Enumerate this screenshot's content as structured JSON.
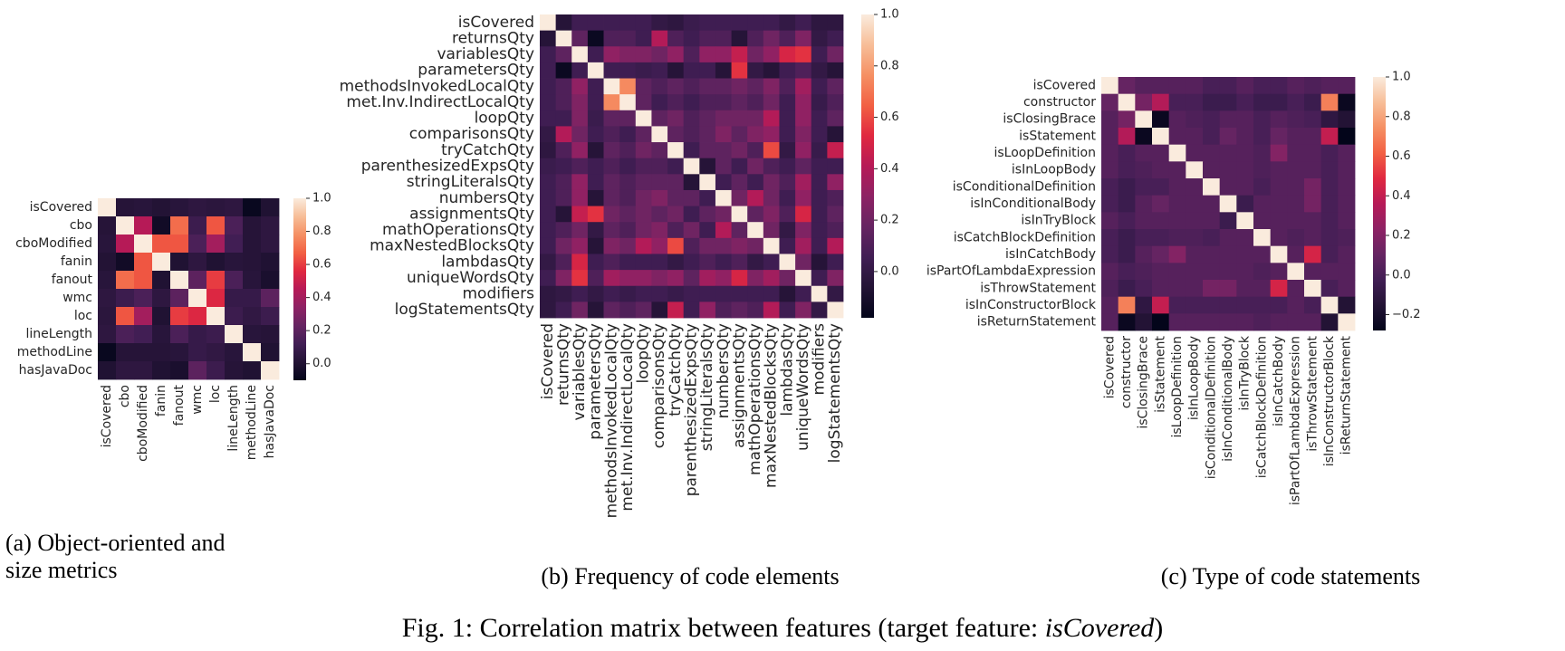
{
  "figure": {
    "caption_prefix": "Fig. 1: Correlation matrix between features (target feature: ",
    "caption_em": "isCovered",
    "caption_suffix": ")"
  },
  "chart_data": [
    {
      "type": "heatmap",
      "subcaption_lines": [
        "(a) Object-oriented and",
        "size metrics"
      ],
      "features": [
        "isCovered",
        "cbo",
        "cboModified",
        "fanin",
        "fanout",
        "wmc",
        "loc",
        "lineLength",
        "methodLine",
        "hasJavaDoc"
      ],
      "colorbar": {
        "min": -0.1,
        "max": 1.0,
        "ticks": [
          "0.0",
          "0.2",
          "0.4",
          "0.6",
          "0.8",
          "1.0"
        ],
        "tick_values": [
          0,
          0.2,
          0.4,
          0.6,
          0.8,
          1.0
        ]
      },
      "values": [
        [
          1.0,
          0.02,
          0.03,
          0.01,
          0.03,
          0.05,
          0.04,
          0.05,
          -0.08,
          0.0
        ],
        [
          0.02,
          1.0,
          0.45,
          -0.05,
          0.7,
          0.1,
          0.65,
          0.15,
          0.02,
          0.05
        ],
        [
          0.03,
          0.45,
          1.0,
          0.65,
          0.65,
          0.15,
          0.4,
          0.12,
          0.02,
          0.05
        ],
        [
          0.01,
          -0.05,
          0.65,
          1.0,
          0.0,
          0.05,
          0.0,
          0.03,
          0.02,
          0.0
        ],
        [
          0.03,
          0.7,
          0.65,
          0.0,
          1.0,
          0.2,
          0.6,
          0.15,
          0.03,
          -0.02
        ],
        [
          0.05,
          0.1,
          0.15,
          0.05,
          0.2,
          1.0,
          0.55,
          0.08,
          0.08,
          0.2
        ],
        [
          0.04,
          0.65,
          0.4,
          0.0,
          0.6,
          0.55,
          1.0,
          0.1,
          0.06,
          0.1
        ],
        [
          0.05,
          0.15,
          0.12,
          0.03,
          0.15,
          0.08,
          0.1,
          1.0,
          0.03,
          0.02
        ],
        [
          -0.08,
          0.02,
          0.02,
          0.02,
          0.03,
          0.08,
          0.06,
          0.03,
          1.0,
          0.0
        ],
        [
          0.0,
          0.05,
          0.05,
          0.0,
          -0.02,
          0.2,
          0.1,
          0.02,
          0.0,
          1.0
        ]
      ]
    },
    {
      "type": "heatmap",
      "subcaption_lines": [
        "(b) Frequency of code elements"
      ],
      "features": [
        "isCovered",
        "returnsQty",
        "variablesQty",
        "parametersQty",
        "methodsInvokedLocalQty",
        "met.Inv.IndirectLocalQty",
        "loopQty",
        "comparisonsQty",
        "tryCatchQty",
        "parenthesizedExpsQty",
        "stringLiteralsQty",
        "numbersQty",
        "assignmentsQty",
        "mathOperationsQty",
        "maxNestedBlocksQty",
        "lambdasQty",
        "uniqueWordsQty",
        "modifiers",
        "logStatementsQty"
      ],
      "colorbar": {
        "min": -0.18,
        "max": 1.0,
        "ticks": [
          "0.0",
          "0.2",
          "0.4",
          "0.6",
          "0.8",
          "1.0"
        ],
        "tick_values": [
          0,
          0.2,
          0.4,
          0.6,
          0.8,
          1.0
        ]
      },
      "values": [
        [
          1.0,
          -0.05,
          0.05,
          0.05,
          0.05,
          0.05,
          0.05,
          0.0,
          -0.02,
          0.03,
          0.05,
          0.05,
          0.05,
          0.05,
          0.05,
          0.0,
          0.05,
          -0.02,
          -0.02
        ],
        [
          -0.05,
          1.0,
          0.15,
          -0.15,
          0.1,
          0.1,
          0.05,
          0.4,
          0.1,
          0.05,
          0.1,
          0.1,
          -0.05,
          0.1,
          0.2,
          0.1,
          0.25,
          0.0,
          0.05
        ],
        [
          0.05,
          0.15,
          1.0,
          0.05,
          0.3,
          0.25,
          0.25,
          0.2,
          0.3,
          0.1,
          0.3,
          0.3,
          0.45,
          0.2,
          0.3,
          0.5,
          0.55,
          0.05,
          0.2
        ],
        [
          0.05,
          -0.15,
          0.05,
          1.0,
          0.05,
          0.05,
          0.03,
          0.05,
          -0.05,
          0.05,
          0.05,
          -0.05,
          0.55,
          0.0,
          -0.05,
          0.05,
          0.1,
          0.0,
          -0.05
        ],
        [
          0.05,
          0.1,
          0.3,
          0.05,
          1.0,
          0.75,
          0.15,
          0.1,
          0.15,
          0.1,
          0.15,
          0.15,
          0.2,
          0.15,
          0.25,
          0.1,
          0.35,
          0.05,
          0.15
        ],
        [
          0.05,
          0.1,
          0.25,
          0.05,
          0.75,
          1.0,
          0.15,
          0.05,
          0.1,
          0.05,
          0.1,
          0.1,
          0.15,
          0.1,
          0.2,
          0.05,
          0.3,
          0.02,
          0.1
        ],
        [
          0.05,
          0.05,
          0.25,
          0.03,
          0.15,
          0.15,
          1.0,
          0.15,
          0.2,
          0.1,
          0.15,
          0.2,
          0.2,
          0.2,
          0.4,
          0.05,
          0.3,
          0.05,
          0.15
        ],
        [
          0.0,
          0.4,
          0.2,
          0.05,
          0.1,
          0.05,
          0.15,
          1.0,
          0.15,
          0.1,
          0.15,
          0.25,
          0.15,
          0.25,
          0.3,
          0.05,
          0.25,
          0.05,
          -0.05
        ],
        [
          -0.02,
          0.1,
          0.3,
          -0.05,
          0.15,
          0.1,
          0.2,
          0.15,
          1.0,
          0.05,
          0.15,
          0.15,
          0.2,
          0.1,
          0.6,
          0.0,
          0.3,
          0.02,
          0.45
        ],
        [
          0.03,
          0.05,
          0.1,
          0.05,
          0.1,
          0.05,
          0.1,
          0.1,
          0.05,
          1.0,
          -0.05,
          0.15,
          0.05,
          0.2,
          0.1,
          0.05,
          0.15,
          0.05,
          0.05
        ],
        [
          0.05,
          0.1,
          0.3,
          0.05,
          0.15,
          0.1,
          0.15,
          0.15,
          0.15,
          -0.05,
          1.0,
          0.05,
          0.15,
          0.05,
          0.2,
          0.1,
          0.35,
          0.05,
          0.3
        ],
        [
          0.05,
          0.1,
          0.3,
          -0.05,
          0.15,
          0.1,
          0.2,
          0.25,
          0.15,
          0.15,
          0.05,
          1.0,
          0.2,
          0.4,
          0.2,
          0.05,
          0.3,
          0.05,
          0.1
        ],
        [
          0.05,
          -0.05,
          0.45,
          0.55,
          0.2,
          0.15,
          0.2,
          0.15,
          0.2,
          0.05,
          0.15,
          0.2,
          1.0,
          0.15,
          0.25,
          0.1,
          0.5,
          0.05,
          0.15
        ],
        [
          0.05,
          0.1,
          0.2,
          0.0,
          0.15,
          0.1,
          0.2,
          0.25,
          0.1,
          0.2,
          0.05,
          0.4,
          0.15,
          1.0,
          0.2,
          0.0,
          0.25,
          0.05,
          0.1
        ],
        [
          0.05,
          0.2,
          0.3,
          -0.05,
          0.25,
          0.2,
          0.4,
          0.3,
          0.6,
          0.1,
          0.2,
          0.2,
          0.25,
          0.2,
          1.0,
          0.05,
          0.35,
          0.05,
          0.4
        ],
        [
          0.0,
          0.1,
          0.5,
          0.05,
          0.1,
          0.05,
          0.05,
          0.05,
          0.0,
          0.05,
          0.1,
          0.05,
          0.1,
          0.0,
          0.05,
          1.0,
          0.2,
          -0.05,
          0.05
        ],
        [
          0.05,
          0.25,
          0.55,
          0.1,
          0.35,
          0.3,
          0.3,
          0.25,
          0.3,
          0.15,
          0.35,
          0.3,
          0.5,
          0.25,
          0.35,
          0.2,
          1.0,
          0.05,
          0.25
        ],
        [
          -0.02,
          0.0,
          0.05,
          0.0,
          0.05,
          0.02,
          0.05,
          0.05,
          0.02,
          0.05,
          0.05,
          0.05,
          0.05,
          0.05,
          0.05,
          -0.05,
          0.05,
          1.0,
          0.0
        ],
        [
          -0.02,
          0.05,
          0.2,
          -0.05,
          0.15,
          0.1,
          0.15,
          -0.05,
          0.45,
          0.05,
          0.3,
          0.1,
          0.15,
          0.1,
          0.4,
          0.05,
          0.25,
          0.0,
          1.0
        ]
      ]
    },
    {
      "type": "heatmap",
      "subcaption_lines": [
        "(c) Type of code statements"
      ],
      "features": [
        "isCovered",
        "constructor",
        "isClosingBrace",
        "isStatement",
        "isLoopDefinition",
        "isInLoopBody",
        "isConditionalDefinition",
        "isInConditionalBody",
        "isInTryBlock",
        "isCatchBlockDefinition",
        "isInCatchBody",
        "isPartOfLambdaExpression",
        "isThrowStatement",
        "isInConstructorBlock",
        "isReturnStatement"
      ],
      "colorbar": {
        "min": -0.28,
        "max": 1.0,
        "ticks": [
          "−0.2",
          "0.0",
          "0.2",
          "0.4",
          "0.6",
          "0.8",
          "1.0"
        ],
        "tick_values": [
          -0.2,
          0,
          0.2,
          0.4,
          0.6,
          0.8,
          1.0
        ]
      },
      "values": [
        [
          1.0,
          0.1,
          0.05,
          0.05,
          0.05,
          0.05,
          0.0,
          0.0,
          0.05,
          0.0,
          0.0,
          0.05,
          0.02,
          0.05,
          0.05
        ],
        [
          0.1,
          1.0,
          0.15,
          0.35,
          0.0,
          0.0,
          -0.05,
          -0.05,
          0.0,
          -0.05,
          -0.05,
          0.0,
          -0.05,
          0.7,
          -0.25
        ],
        [
          0.05,
          0.15,
          1.0,
          -0.25,
          0.05,
          0.02,
          0.0,
          0.05,
          0.05,
          0.0,
          0.05,
          0.02,
          0.0,
          -0.1,
          -0.15
        ],
        [
          0.05,
          0.35,
          -0.25,
          1.0,
          0.05,
          0.05,
          0.0,
          0.1,
          0.05,
          0.0,
          0.1,
          0.05,
          0.05,
          0.4,
          -0.3
        ],
        [
          0.05,
          0.0,
          0.05,
          0.05,
          1.0,
          0.05,
          0.05,
          0.05,
          0.05,
          0.02,
          0.2,
          0.05,
          0.05,
          0.0,
          0.05
        ],
        [
          0.05,
          0.0,
          0.02,
          0.05,
          0.05,
          1.0,
          0.05,
          0.05,
          0.05,
          0.02,
          0.05,
          0.05,
          0.05,
          0.0,
          0.05
        ],
        [
          0.0,
          -0.05,
          0.0,
          0.0,
          0.05,
          0.05,
          1.0,
          0.05,
          0.05,
          0.0,
          0.05,
          0.05,
          0.15,
          0.0,
          0.05
        ],
        [
          0.0,
          -0.05,
          0.05,
          0.1,
          0.05,
          0.05,
          0.05,
          1.0,
          -0.05,
          0.05,
          0.05,
          0.05,
          0.15,
          0.0,
          0.05
        ],
        [
          0.05,
          0.0,
          0.05,
          0.05,
          0.05,
          0.05,
          0.05,
          -0.05,
          1.0,
          0.05,
          0.05,
          0.05,
          0.05,
          0.0,
          0.05
        ],
        [
          0.0,
          -0.05,
          0.0,
          0.0,
          0.02,
          0.02,
          0.0,
          0.05,
          0.05,
          1.0,
          0.05,
          0.02,
          0.05,
          0.0,
          0.02
        ],
        [
          0.0,
          -0.05,
          0.05,
          0.1,
          0.2,
          0.05,
          0.05,
          0.05,
          0.05,
          0.05,
          1.0,
          0.05,
          0.45,
          0.0,
          0.05
        ],
        [
          0.05,
          0.0,
          0.02,
          0.05,
          0.05,
          0.05,
          0.05,
          0.05,
          0.05,
          0.02,
          0.05,
          1.0,
          0.05,
          0.05,
          0.05
        ],
        [
          0.02,
          -0.05,
          0.0,
          0.05,
          0.05,
          0.05,
          0.15,
          0.15,
          0.05,
          0.05,
          0.45,
          0.05,
          1.0,
          0.0,
          0.05
        ],
        [
          0.05,
          0.7,
          -0.1,
          0.4,
          0.0,
          0.0,
          0.0,
          0.0,
          0.0,
          0.0,
          0.0,
          0.05,
          0.0,
          1.0,
          -0.15
        ],
        [
          0.05,
          -0.25,
          -0.15,
          -0.3,
          0.05,
          0.05,
          0.05,
          0.05,
          0.05,
          0.02,
          0.05,
          0.05,
          0.05,
          -0.15,
          1.0
        ]
      ]
    }
  ]
}
